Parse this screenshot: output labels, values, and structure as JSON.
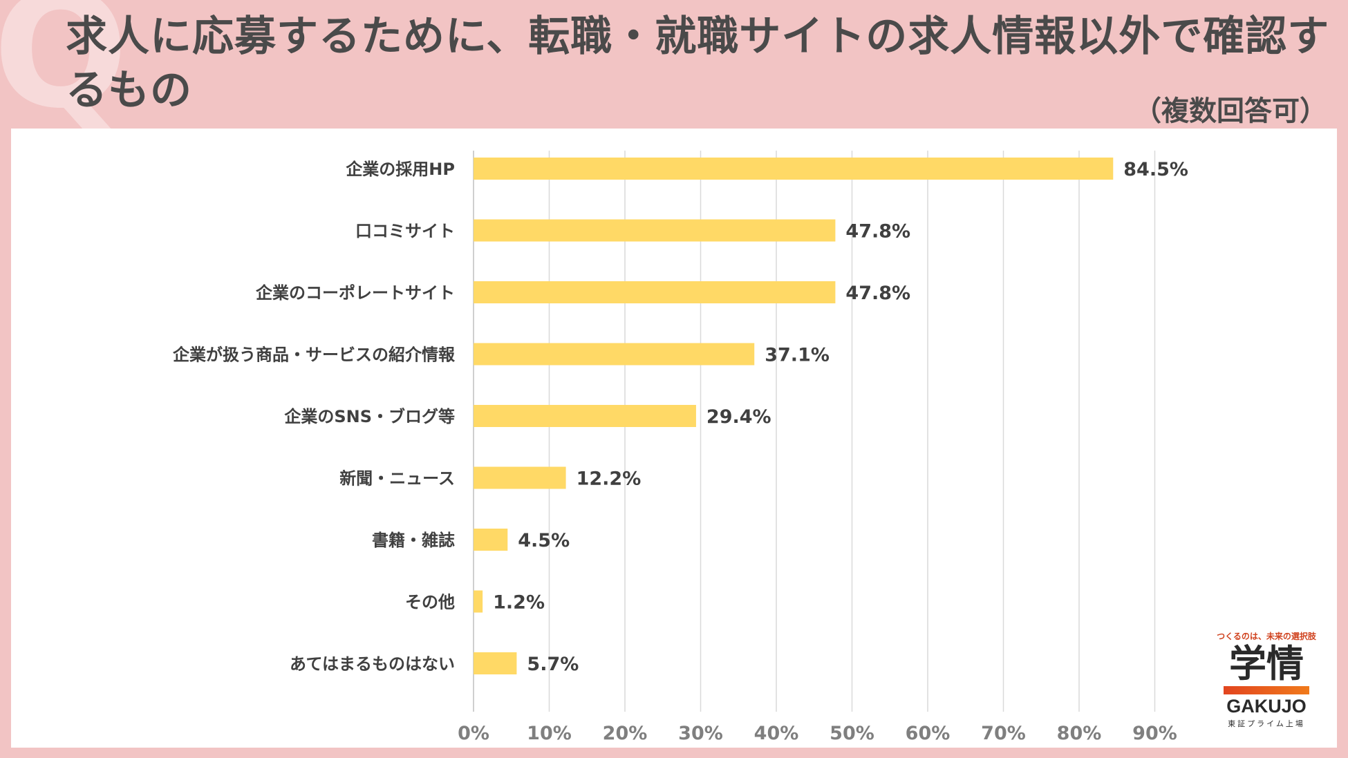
{
  "header": {
    "title": "求人に応募するために、転職・就職サイトの求人情報以外で確認するもの",
    "subtitle": "（複数回答可）",
    "decor_letter": "Q"
  },
  "logo": {
    "tagline": "つくるのは、未来の選択肢",
    "kanji": "学情",
    "name": "GAKUJO",
    "listing": "東証プライム上場"
  },
  "colors": {
    "bar": "#ffd966",
    "grid": "#d9d9d9",
    "text": "#404040",
    "tick": "#7f7f7f",
    "background": "#f2c4c4"
  },
  "chart_data": {
    "type": "bar",
    "orientation": "horizontal",
    "title": "求人に応募するために、転職・就職サイトの求人情報以外で確認するもの",
    "xlabel": "",
    "ylabel": "",
    "xlim": [
      0,
      90
    ],
    "xticks": [
      "0%",
      "10%",
      "20%",
      "30%",
      "40%",
      "50%",
      "60%",
      "70%",
      "80%",
      "90%"
    ],
    "grid": true,
    "categories": [
      "企業の採用HP",
      "口コミサイト",
      "企業のコーポレートサイト",
      "企業が扱う商品・サービスの紹介情報",
      "企業のSNS・ブログ等",
      "新聞・ニュース",
      "書籍・雑誌",
      "その他",
      "あてはまるものはない"
    ],
    "values": [
      84.5,
      47.8,
      47.8,
      37.1,
      29.4,
      12.2,
      4.5,
      1.2,
      5.7
    ],
    "value_labels": [
      "84.5%",
      "47.8%",
      "47.8%",
      "37.1%",
      "29.4%",
      "12.2%",
      "4.5%",
      "1.2%",
      "5.7%"
    ]
  }
}
